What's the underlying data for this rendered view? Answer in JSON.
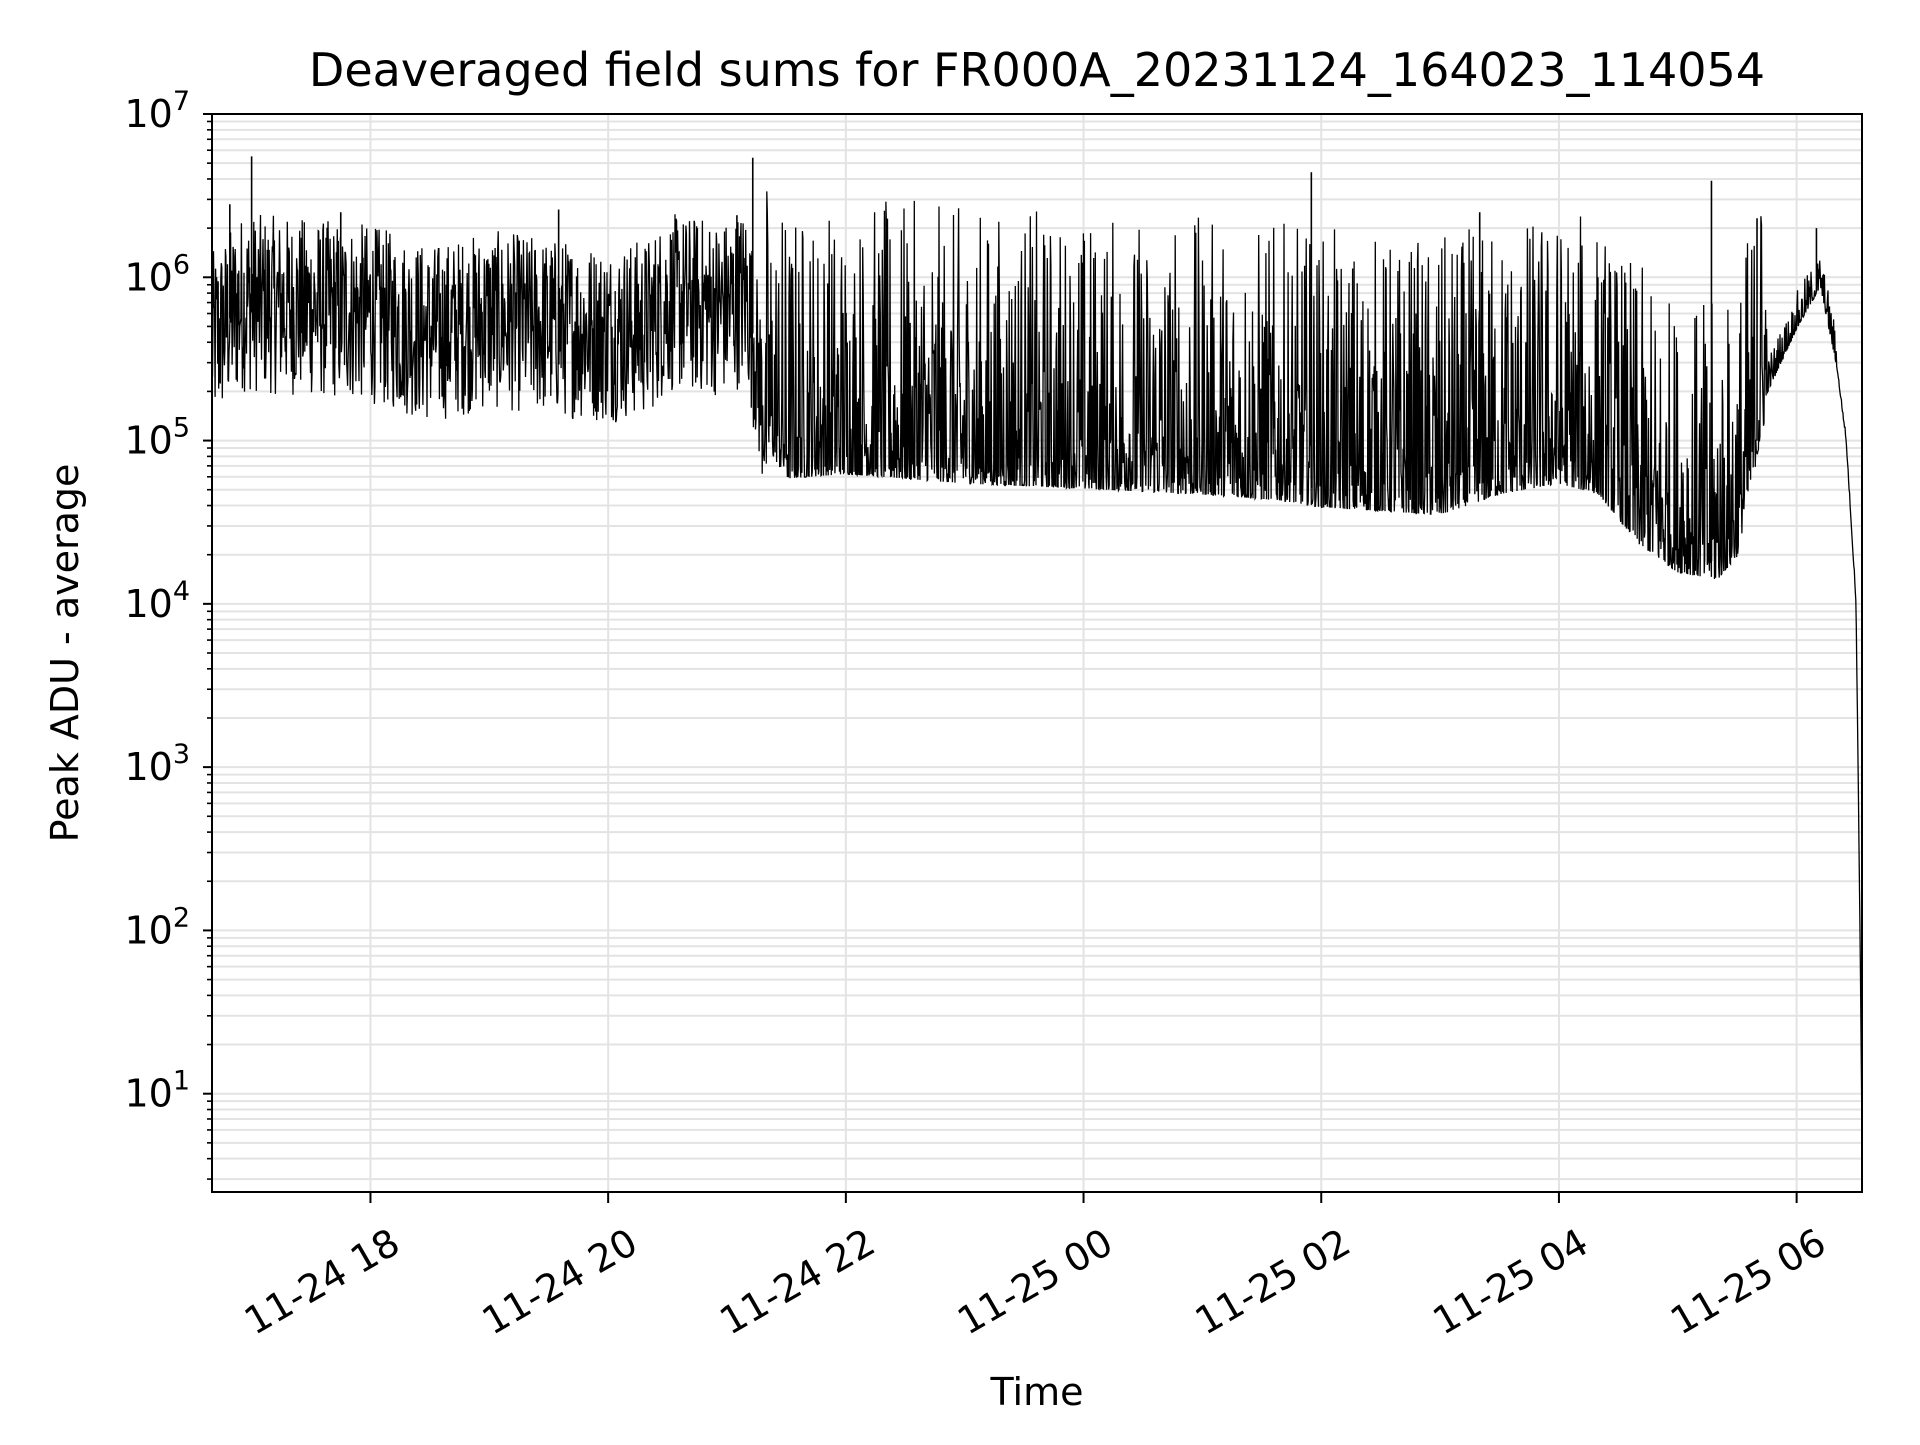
{
  "chart_data": {
    "type": "line",
    "title": "Deaveraged field sums for FR000A_20231124_164023_114054",
    "xlabel": "Time",
    "ylabel": "Peak ADU - average",
    "yscale": "log",
    "xlim": [
      "2023-11-24 16:40",
      "2023-11-25 06:33"
    ],
    "ylim": [
      2.5,
      10000000
    ],
    "grid": true,
    "x_ticks": [
      {
        "value": "2023-11-24 18:00",
        "label": "11-24 18"
      },
      {
        "value": "2023-11-24 20:00",
        "label": "11-24 20"
      },
      {
        "value": "2023-11-24 22:00",
        "label": "11-24 22"
      },
      {
        "value": "2023-11-25 00:00",
        "label": "11-25 00"
      },
      {
        "value": "2023-11-25 02:00",
        "label": "11-25 02"
      },
      {
        "value": "2023-11-25 04:00",
        "label": "11-25 04"
      },
      {
        "value": "2023-11-25 06:00",
        "label": "11-25 06"
      }
    ],
    "y_ticks": [
      {
        "value": 10,
        "base": "10",
        "exp": "1"
      },
      {
        "value": 100,
        "base": "10",
        "exp": "2"
      },
      {
        "value": 1000,
        "base": "10",
        "exp": "3"
      },
      {
        "value": 10000,
        "base": "10",
        "exp": "4"
      },
      {
        "value": 100000,
        "base": "10",
        "exp": "5"
      },
      {
        "value": 1000000,
        "base": "10",
        "exp": "6"
      },
      {
        "value": 10000000,
        "base": "10",
        "exp": "7"
      }
    ],
    "series": [
      {
        "color": "#000000",
        "style": "noisy-envelope",
        "baseline": [
          [
            "2023-11-24 16:40",
            400000
          ],
          [
            "2023-11-24 16:55",
            700000
          ],
          [
            "2023-11-24 17:30",
            650000
          ],
          [
            "2023-11-24 18:00",
            600000
          ],
          [
            "2023-11-24 18:30",
            450000
          ],
          [
            "2023-11-24 19:00",
            550000
          ],
          [
            "2023-11-24 19:30",
            500000
          ],
          [
            "2023-11-24 20:00",
            450000
          ],
          [
            "2023-11-24 20:20",
            500000
          ],
          [
            "2023-11-24 20:30",
            700000
          ],
          [
            "2023-11-24 21:00",
            650000
          ],
          [
            "2023-11-24 21:10",
            800000
          ],
          [
            "2023-11-24 21:20",
            120000
          ],
          [
            "2023-11-24 21:30",
            75000
          ],
          [
            "2023-11-24 22:00",
            80000
          ],
          [
            "2023-11-24 23:00",
            70000
          ],
          [
            "2023-11-25 00:00",
            65000
          ],
          [
            "2023-11-25 01:00",
            60000
          ],
          [
            "2023-11-25 01:40",
            55000
          ],
          [
            "2023-11-25 02:00",
            50000
          ],
          [
            "2023-11-25 03:00",
            45000
          ],
          [
            "2023-11-25 03:30",
            60000
          ],
          [
            "2023-11-25 04:00",
            70000
          ],
          [
            "2023-11-25 04:20",
            60000
          ],
          [
            "2023-11-25 04:40",
            30000
          ],
          [
            "2023-11-25 05:00",
            20000
          ],
          [
            "2023-11-25 05:20",
            18000
          ],
          [
            "2023-11-25 05:30",
            25000
          ],
          [
            "2023-11-25 05:45",
            200000
          ],
          [
            "2023-11-25 06:00",
            500000
          ],
          [
            "2023-11-25 06:12",
            900000
          ],
          [
            "2023-11-25 06:20",
            300000
          ],
          [
            "2023-11-25 06:25",
            100000
          ],
          [
            "2023-11-25 06:30",
            10000
          ],
          [
            "2023-11-25 06:32",
            100
          ],
          [
            "2023-11-25 06:33",
            5
          ]
        ],
        "spikes": [
          [
            "2023-11-24 17:00",
            5500000
          ],
          [
            "2023-11-24 16:49",
            2800000
          ],
          [
            "2023-11-24 17:45",
            2500000
          ],
          [
            "2023-11-24 19:35",
            2600000
          ],
          [
            "2023-11-24 20:45",
            2000000
          ],
          [
            "2023-11-24 21:05",
            2400000
          ],
          [
            "2023-11-24 21:13",
            5400000
          ],
          [
            "2023-11-25 01:55",
            4400000
          ],
          [
            "2023-11-25 03:20",
            2500000
          ],
          [
            "2023-11-25 05:17",
            3900000
          ],
          [
            "2023-11-25 05:40",
            2300000
          ],
          [
            "2023-11-25 06:10",
            2000000
          ]
        ]
      }
    ]
  }
}
